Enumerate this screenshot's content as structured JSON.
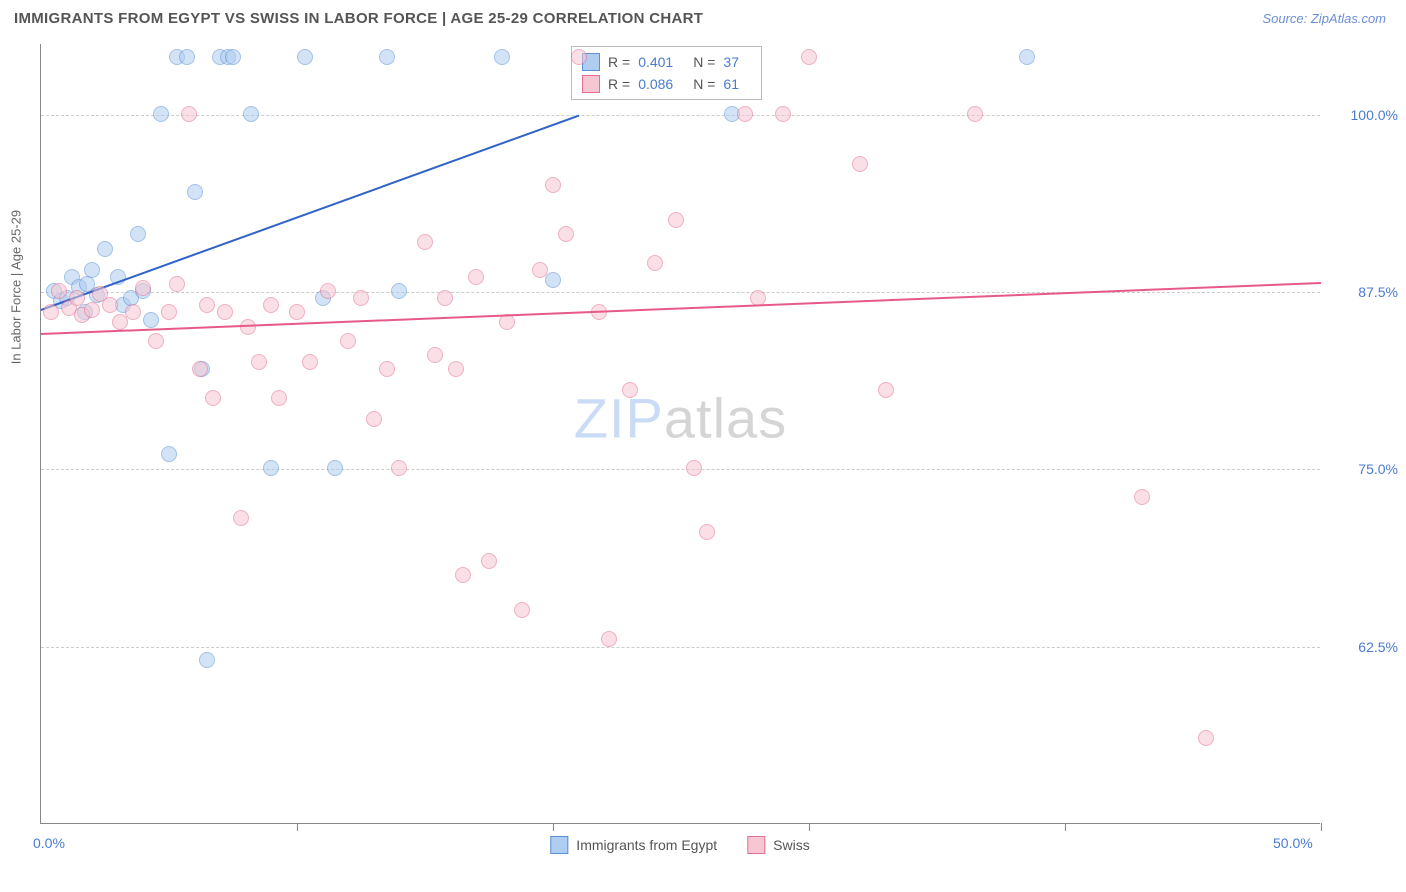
{
  "header": {
    "title": "IMMIGRANTS FROM EGYPT VS SWISS IN LABOR FORCE | AGE 25-29 CORRELATION CHART",
    "source": "Source: ZipAtlas.com"
  },
  "watermark": {
    "part1": "ZIP",
    "part2": "atlas"
  },
  "chart": {
    "type": "scatter",
    "y_axis_title": "In Labor Force | Age 25-29",
    "background_color": "#ffffff",
    "grid_color": "#cccccc",
    "axis_color": "#888888",
    "xlim": [
      0,
      50
    ],
    "ylim": [
      50,
      105
    ],
    "x_ticks": [
      0,
      10,
      20,
      30,
      40,
      50
    ],
    "x_tick_labels": [
      "0.0%",
      "",
      "",
      "",
      "",
      "50.0%"
    ],
    "y_ticks": [
      62.5,
      75.0,
      87.5,
      100.0
    ],
    "y_tick_labels": [
      "62.5%",
      "75.0%",
      "87.5%",
      "100.0%"
    ],
    "marker_radius": 8,
    "marker_opacity": 0.55,
    "series": [
      {
        "name": "Immigrants from Egypt",
        "color_fill": "#aecdf0",
        "color_stroke": "#5b8fd6",
        "R": "0.401",
        "N": "37",
        "trend": {
          "x1": 0,
          "y1": 86.3,
          "x2": 21,
          "y2": 100,
          "color": "#2f63c7",
          "width": 2
        },
        "points": [
          [
            0.5,
            87.5
          ],
          [
            0.8,
            86.8
          ],
          [
            1.0,
            87.0
          ],
          [
            1.2,
            88.5
          ],
          [
            1.5,
            87.8
          ],
          [
            1.7,
            86.0
          ],
          [
            1.8,
            88.0
          ],
          [
            2.0,
            89.0
          ],
          [
            2.2,
            87.2
          ],
          [
            2.5,
            90.5
          ],
          [
            3.0,
            88.5
          ],
          [
            3.2,
            86.5
          ],
          [
            3.5,
            87.0
          ],
          [
            3.8,
            91.5
          ],
          [
            4.0,
            87.5
          ],
          [
            4.3,
            85.5
          ],
          [
            4.7,
            100.0
          ],
          [
            5.0,
            76.0
          ],
          [
            5.3,
            104.0
          ],
          [
            5.7,
            104.0
          ],
          [
            6.0,
            94.5
          ],
          [
            6.3,
            82.0
          ],
          [
            6.5,
            61.5
          ],
          [
            7.0,
            104.0
          ],
          [
            7.3,
            104.0
          ],
          [
            7.5,
            104.0
          ],
          [
            8.2,
            100.0
          ],
          [
            9.0,
            75.0
          ],
          [
            10.3,
            104.0
          ],
          [
            11.0,
            87.0
          ],
          [
            11.5,
            75.0
          ],
          [
            13.5,
            104.0
          ],
          [
            14.0,
            87.5
          ],
          [
            18.0,
            104.0
          ],
          [
            20.0,
            88.3
          ],
          [
            27.0,
            100.0
          ],
          [
            38.5,
            104.0
          ]
        ]
      },
      {
        "name": "Swiss",
        "color_fill": "#f6c6d3",
        "color_stroke": "#e36f92",
        "R": "0.086",
        "N": "61",
        "trend": {
          "x1": 0,
          "y1": 84.6,
          "x2": 50,
          "y2": 88.2,
          "color": "#e75a87",
          "width": 2
        },
        "points": [
          [
            0.4,
            86.0
          ],
          [
            0.7,
            87.5
          ],
          [
            1.1,
            86.3
          ],
          [
            1.4,
            87.0
          ],
          [
            1.6,
            85.8
          ],
          [
            2.0,
            86.2
          ],
          [
            2.3,
            87.3
          ],
          [
            2.7,
            86.5
          ],
          [
            3.1,
            85.3
          ],
          [
            3.6,
            86.0
          ],
          [
            4.0,
            87.7
          ],
          [
            4.5,
            84.0
          ],
          [
            5.0,
            86.0
          ],
          [
            5.3,
            88.0
          ],
          [
            5.8,
            100.0
          ],
          [
            6.2,
            82.0
          ],
          [
            6.5,
            86.5
          ],
          [
            6.7,
            80.0
          ],
          [
            7.2,
            86.0
          ],
          [
            7.8,
            71.5
          ],
          [
            8.1,
            85.0
          ],
          [
            8.5,
            82.5
          ],
          [
            9.0,
            86.5
          ],
          [
            9.3,
            80.0
          ],
          [
            10.0,
            86.0
          ],
          [
            10.5,
            82.5
          ],
          [
            11.2,
            87.5
          ],
          [
            12.0,
            84.0
          ],
          [
            12.5,
            87.0
          ],
          [
            13.0,
            78.5
          ],
          [
            13.5,
            82.0
          ],
          [
            14.0,
            75.0
          ],
          [
            15.0,
            91.0
          ],
          [
            15.4,
            83.0
          ],
          [
            15.8,
            87.0
          ],
          [
            16.2,
            82.0
          ],
          [
            16.5,
            67.5
          ],
          [
            17.0,
            88.5
          ],
          [
            17.5,
            68.5
          ],
          [
            18.2,
            85.3
          ],
          [
            18.8,
            65.0
          ],
          [
            19.5,
            89.0
          ],
          [
            20.0,
            95.0
          ],
          [
            20.5,
            91.5
          ],
          [
            21.0,
            104.0
          ],
          [
            21.8,
            86.0
          ],
          [
            22.2,
            63.0
          ],
          [
            23.0,
            80.5
          ],
          [
            24.0,
            89.5
          ],
          [
            24.8,
            92.5
          ],
          [
            25.5,
            75.0
          ],
          [
            26.0,
            70.5
          ],
          [
            27.5,
            100.0
          ],
          [
            28.0,
            87.0
          ],
          [
            29.0,
            100.0
          ],
          [
            30.0,
            104.0
          ],
          [
            32.0,
            96.5
          ],
          [
            33.0,
            80.5
          ],
          [
            36.5,
            100.0
          ],
          [
            43.0,
            73.0
          ],
          [
            45.5,
            56.0
          ]
        ]
      }
    ],
    "legend_bottom": [
      {
        "label": "Immigrants from Egypt",
        "fill": "#aecdf0",
        "stroke": "#5b8fd6"
      },
      {
        "label": "Swiss",
        "fill": "#f6c6d3",
        "stroke": "#e36f92"
      }
    ]
  }
}
